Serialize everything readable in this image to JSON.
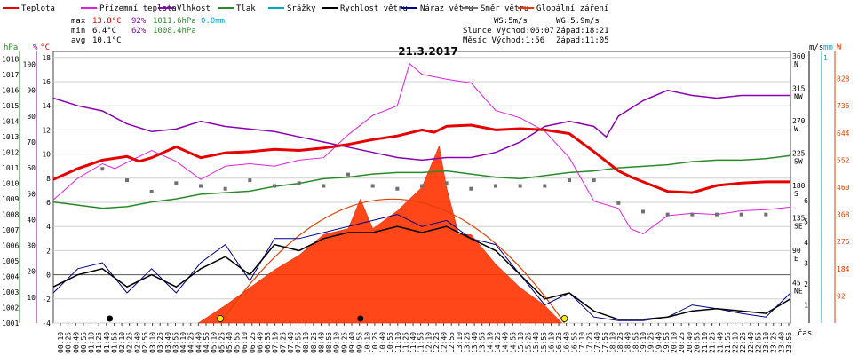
{
  "chart_data": {
    "type": "line",
    "title": "21.3.2017",
    "legend": [
      {
        "label": "Teplota",
        "color": "#e60000"
      },
      {
        "label": "Přízemní teplota",
        "color": "#e020e0"
      },
      {
        "label": "Vlhkost",
        "color": "#8a00b0"
      },
      {
        "label": "Tlak",
        "color": "#2a8a2a"
      },
      {
        "label": "Srážky",
        "color": "#00a8c8"
      },
      {
        "label": "Rychlost větru",
        "color": "#000000"
      },
      {
        "label": "Náraz větru",
        "color": "#00008b"
      },
      {
        "label": "Směr větru",
        "color": "#707070"
      },
      {
        "label": "Globální záření",
        "color": "#ff3300"
      }
    ],
    "stats": {
      "max": {
        "label": "max",
        "temp": "13.8°C",
        "hum": "92%",
        "press": "1011.6hPa",
        "rain": "0.0mm"
      },
      "min": {
        "label": "min",
        "temp": "6.4°C",
        "hum": "62%",
        "press": "1008.4hPa"
      },
      "avg": {
        "label": "avg",
        "temp": "10.1°C"
      }
    },
    "info": {
      "ws": "WS:5m/s",
      "wg": "WG:5.9m/s",
      "sun_rise": "Slunce Východ:06:07",
      "sun_set": "Západ:18:21",
      "moon_rise": "Měsíc  Východ:1:56",
      "moon_set": "Západ:11:05"
    },
    "axes": {
      "hpa": {
        "unit": "hPa",
        "ticks": [
          "1018",
          "1017",
          "1016",
          "1015",
          "1014",
          "1013",
          "1012",
          "1011",
          "1010",
          "1009",
          "1008",
          "1007",
          "1006",
          "1005",
          "1004",
          "1003",
          "1002",
          "1001"
        ],
        "range": [
          1001,
          1018.5
        ]
      },
      "pct": {
        "unit": "%",
        "ticks": [
          "100",
          "90",
          "80",
          "70",
          "60",
          "50",
          "40",
          "30",
          "20",
          "10"
        ],
        "range": [
          0,
          105
        ]
      },
      "temp": {
        "unit": "°C",
        "ticks": [
          "18",
          "16",
          "14",
          "12",
          "10",
          "8",
          "6",
          "4",
          "2",
          "0",
          "-2",
          "-4"
        ],
        "range": [
          -4,
          18.5
        ]
      },
      "ms": {
        "unit": "m/s"
      },
      "mm": {
        "unit": "mm",
        "top_tick": "1"
      },
      "w": {
        "unit": "W",
        "ticks": [
          "828",
          "736",
          "644",
          "552",
          "460",
          "368",
          "276",
          "184",
          "92"
        ],
        "range": [
          0,
          920
        ]
      },
      "dir": {
        "ticks": [
          {
            "deg": "360",
            "lbl": "N"
          },
          {
            "deg": "315",
            "lbl": "NW"
          },
          {
            "deg": "270",
            "lbl": "W"
          },
          {
            "deg": "225",
            "lbl": "SW"
          },
          {
            "deg": "180",
            "lbl": "S"
          },
          {
            "deg": "135",
            "lbl": "SE"
          },
          {
            "deg": "90",
            "lbl": "E"
          },
          {
            "deg": "45",
            "lbl": "NE"
          }
        ]
      },
      "ms_ticks": [
        "6",
        "5",
        "4",
        "3",
        "2",
        "1"
      ],
      "x_label": "čas",
      "x_ticks": [
        "00:10",
        "00:25",
        "00:40",
        "00:55",
        "01:10",
        "01:25",
        "01:40",
        "01:55",
        "02:10",
        "02:25",
        "02:40",
        "02:55",
        "03:10",
        "03:25",
        "03:40",
        "03:55",
        "04:10",
        "04:25",
        "04:40",
        "04:55",
        "05:10",
        "05:25",
        "05:40",
        "05:55",
        "06:10",
        "06:25",
        "06:40",
        "06:55",
        "07:10",
        "07:25",
        "07:40",
        "07:55",
        "08:10",
        "08:25",
        "08:40",
        "08:55",
        "09:10",
        "09:25",
        "09:40",
        "09:55",
        "10:10",
        "10:25",
        "10:40",
        "10:55",
        "11:10",
        "11:25",
        "11:40",
        "11:55",
        "12:10",
        "12:25",
        "12:40",
        "12:55",
        "13:10",
        "13:25",
        "13:40",
        "13:55",
        "14:10",
        "14:25",
        "14:40",
        "14:55",
        "15:10",
        "15:25",
        "15:40",
        "15:55",
        "16:10",
        "16:25",
        "16:40",
        "16:55",
        "17:10",
        "17:25",
        "17:40",
        "17:55",
        "18:10",
        "18:25",
        "18:40",
        "18:55",
        "19:10",
        "19:25",
        "19:40",
        "19:55",
        "20:10",
        "20:25",
        "20:40",
        "20:55",
        "21:10",
        "21:25",
        "21:40",
        "21:55",
        "22:10",
        "22:25",
        "22:40",
        "22:55",
        "23:10",
        "23:25",
        "23:40",
        "23:55"
      ]
    },
    "series": {
      "temperature": [
        [
          0,
          7.9
        ],
        [
          1,
          8.8
        ],
        [
          2,
          9.5
        ],
        [
          3,
          9.8
        ],
        [
          3.5,
          9.4
        ],
        [
          4,
          9.7
        ],
        [
          5,
          10.6
        ],
        [
          6,
          9.7
        ],
        [
          7,
          10.1
        ],
        [
          8,
          10.2
        ],
        [
          9,
          10.4
        ],
        [
          10,
          10.3
        ],
        [
          11,
          10.5
        ],
        [
          12,
          10.8
        ],
        [
          13,
          11.2
        ],
        [
          14,
          11.5
        ],
        [
          15,
          12.0
        ],
        [
          15.5,
          11.8
        ],
        [
          16,
          12.3
        ],
        [
          17,
          12.4
        ],
        [
          18,
          12.0
        ],
        [
          19,
          12.1
        ],
        [
          20,
          12.0
        ],
        [
          21,
          11.7
        ],
        [
          22,
          10.2
        ],
        [
          23,
          8.6
        ],
        [
          23.5,
          8.1
        ],
        [
          24,
          7.7
        ],
        [
          25,
          6.9
        ],
        [
          26,
          6.8
        ],
        [
          27,
          7.4
        ],
        [
          28,
          7.6
        ],
        [
          29,
          7.7
        ],
        [
          30,
          7.7
        ]
      ],
      "ground_temperature": [
        [
          0,
          6.2
        ],
        [
          1,
          8.0
        ],
        [
          2,
          9.2
        ],
        [
          2.5,
          8.8
        ],
        [
          3,
          9.3
        ],
        [
          4,
          10.3
        ],
        [
          5,
          9.4
        ],
        [
          6,
          7.9
        ],
        [
          7,
          9.0
        ],
        [
          8,
          9.2
        ],
        [
          9,
          9.0
        ],
        [
          10,
          9.5
        ],
        [
          11,
          9.7
        ],
        [
          12,
          11.6
        ],
        [
          13,
          13.2
        ],
        [
          14,
          14.0
        ],
        [
          14.5,
          17.5
        ],
        [
          15,
          16.6
        ],
        [
          16,
          16.2
        ],
        [
          17,
          15.9
        ],
        [
          18,
          13.6
        ],
        [
          19,
          13.0
        ],
        [
          20,
          11.9
        ],
        [
          21,
          9.7
        ],
        [
          22,
          6.1
        ],
        [
          23,
          5.5
        ],
        [
          23.5,
          3.8
        ],
        [
          24,
          3.4
        ],
        [
          25,
          4.9
        ],
        [
          26,
          5.1
        ],
        [
          27,
          5.0
        ],
        [
          28,
          5.3
        ],
        [
          29,
          5.4
        ],
        [
          30,
          5.6
        ]
      ],
      "humidity": [
        [
          0,
          87
        ],
        [
          1,
          84
        ],
        [
          2,
          82
        ],
        [
          3,
          77
        ],
        [
          4,
          74
        ],
        [
          5,
          75
        ],
        [
          6,
          78
        ],
        [
          7,
          76
        ],
        [
          8,
          75
        ],
        [
          9,
          74
        ],
        [
          10,
          72
        ],
        [
          11,
          70
        ],
        [
          12,
          68
        ],
        [
          13,
          66
        ],
        [
          14,
          64
        ],
        [
          15,
          63
        ],
        [
          16,
          64
        ],
        [
          17,
          64
        ],
        [
          18,
          66
        ],
        [
          19,
          70
        ],
        [
          20,
          76
        ],
        [
          21,
          78
        ],
        [
          22,
          76
        ],
        [
          22.5,
          72
        ],
        [
          23,
          80
        ],
        [
          24,
          86
        ],
        [
          25,
          90
        ],
        [
          26,
          88
        ],
        [
          27,
          87
        ],
        [
          28,
          88
        ],
        [
          29,
          88
        ],
        [
          30,
          88
        ]
      ],
      "pressure": [
        [
          0,
          1008.8
        ],
        [
          1,
          1008.6
        ],
        [
          2,
          1008.4
        ],
        [
          3,
          1008.5
        ],
        [
          4,
          1008.8
        ],
        [
          5,
          1009.0
        ],
        [
          6,
          1009.3
        ],
        [
          7,
          1009.4
        ],
        [
          8,
          1009.5
        ],
        [
          9,
          1009.8
        ],
        [
          10,
          1010.0
        ],
        [
          11,
          1010.3
        ],
        [
          12,
          1010.4
        ],
        [
          13,
          1010.6
        ],
        [
          14,
          1010.7
        ],
        [
          15,
          1010.7
        ],
        [
          16,
          1010.8
        ],
        [
          17,
          1010.6
        ],
        [
          18,
          1010.4
        ],
        [
          19,
          1010.3
        ],
        [
          20,
          1010.5
        ],
        [
          21,
          1010.7
        ],
        [
          22,
          1010.8
        ],
        [
          23,
          1011.0
        ],
        [
          24,
          1011.1
        ],
        [
          25,
          1011.2
        ],
        [
          26,
          1011.4
        ],
        [
          27,
          1011.5
        ],
        [
          28,
          1011.5
        ],
        [
          29,
          1011.6
        ],
        [
          30,
          1011.8
        ]
      ],
      "wind_speed": [
        [
          0,
          -1
        ],
        [
          1,
          0
        ],
        [
          2,
          0.5
        ],
        [
          3,
          -1
        ],
        [
          4,
          0
        ],
        [
          5,
          -1
        ],
        [
          6,
          0.5
        ],
        [
          7,
          1.5
        ],
        [
          8,
          0
        ],
        [
          9,
          2.5
        ],
        [
          10,
          2
        ],
        [
          11,
          3
        ],
        [
          12,
          3.5
        ],
        [
          13,
          3.5
        ],
        [
          14,
          4
        ],
        [
          15,
          3.5
        ],
        [
          16,
          4
        ],
        [
          17,
          3
        ],
        [
          18,
          2
        ],
        [
          19,
          0
        ],
        [
          20,
          -2
        ],
        [
          21,
          -1.5
        ],
        [
          22,
          -3
        ],
        [
          23,
          -3.7
        ],
        [
          24,
          -3.7
        ],
        [
          25,
          -3.5
        ],
        [
          26,
          -3
        ],
        [
          27,
          -2.8
        ],
        [
          28,
          -3
        ],
        [
          29,
          -3.2
        ],
        [
          30,
          -2
        ]
      ],
      "wind_gust": [
        [
          0,
          -1.5
        ],
        [
          1,
          0.5
        ],
        [
          2,
          1
        ],
        [
          3,
          -1.5
        ],
        [
          4,
          0.5
        ],
        [
          5,
          -1.5
        ],
        [
          6,
          1
        ],
        [
          7,
          2.5
        ],
        [
          8,
          -0.5
        ],
        [
          9,
          3
        ],
        [
          10,
          3
        ],
        [
          11,
          3.5
        ],
        [
          12,
          4
        ],
        [
          13,
          4.5
        ],
        [
          14,
          5
        ],
        [
          15,
          4
        ],
        [
          16,
          4.5
        ],
        [
          17,
          3
        ],
        [
          18,
          2.5
        ],
        [
          19,
          0
        ],
        [
          20,
          -2.5
        ],
        [
          21,
          -1.5
        ],
        [
          22,
          -3.5
        ],
        [
          23,
          -3.8
        ],
        [
          24,
          -3.8
        ],
        [
          25,
          -3.5
        ],
        [
          26,
          -2.5
        ],
        [
          27,
          -2.8
        ],
        [
          28,
          -3.2
        ],
        [
          29,
          -3.5
        ],
        [
          30,
          -1.5
        ]
      ],
      "wind_direction": [
        [
          2,
          3
        ],
        [
          3,
          2.6
        ],
        [
          4,
          2.2
        ],
        [
          5,
          2.5
        ],
        [
          6,
          2.4
        ],
        [
          7,
          2.3
        ],
        [
          8,
          2.6
        ],
        [
          9,
          2.4
        ],
        [
          10,
          2.5
        ],
        [
          11,
          2.4
        ],
        [
          12,
          2.8
        ],
        [
          13,
          2.4
        ],
        [
          14,
          2.3
        ],
        [
          15,
          2.4
        ],
        [
          16,
          2.5
        ],
        [
          17,
          2.3
        ],
        [
          18,
          2.4
        ],
        [
          19,
          2.4
        ],
        [
          20,
          2.4
        ],
        [
          21,
          2.6
        ],
        [
          22,
          2.6
        ],
        [
          23,
          1.8
        ],
        [
          24,
          1.5
        ],
        [
          25,
          1.4
        ],
        [
          26,
          1.4
        ],
        [
          27,
          1.4
        ],
        [
          28,
          1.4
        ],
        [
          29,
          1.4
        ]
      ],
      "solar": [
        [
          5.9,
          0
        ],
        [
          7,
          60
        ],
        [
          8,
          120
        ],
        [
          9,
          180
        ],
        [
          10,
          230
        ],
        [
          11,
          300
        ],
        [
          12,
          320
        ],
        [
          12.5,
          420
        ],
        [
          13,
          320
        ],
        [
          14,
          380
        ],
        [
          15,
          460
        ],
        [
          15.7,
          600
        ],
        [
          16,
          460
        ],
        [
          16.5,
          300
        ],
        [
          17,
          300
        ],
        [
          18,
          200
        ],
        [
          19,
          120
        ],
        [
          20,
          60
        ],
        [
          20.7,
          0
        ]
      ]
    }
  }
}
